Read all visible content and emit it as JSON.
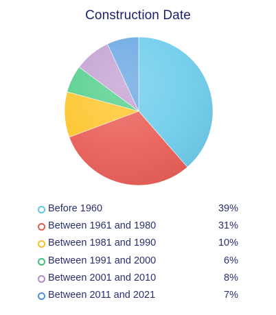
{
  "chart_data": {
    "type": "pie",
    "title": "Construction Date",
    "categories": [
      "Before 1960",
      "Between 1961 and 1980",
      "Between 1981 and 1990",
      "Between 1991 and 2000",
      "Between 2001 and 2010",
      "Between 2011 and 2021"
    ],
    "values": [
      39,
      31,
      10,
      6,
      8,
      7
    ],
    "value_labels": [
      "39%",
      "31%",
      "10%",
      "6%",
      "8%",
      "7%"
    ],
    "unit": "%",
    "colors": [
      "#6fcdec",
      "#ea6059",
      "#fec62e",
      "#55cf8c",
      "#c4a0d2",
      "#6aa8e2"
    ],
    "marker_colors": [
      "#5fc6e8",
      "#e75a54",
      "#f5c12a",
      "#3dbf7f",
      "#b48ac6",
      "#4d8fd8"
    ],
    "legend_position": "bottom",
    "start_angle": "top",
    "direction": "clockwise"
  }
}
